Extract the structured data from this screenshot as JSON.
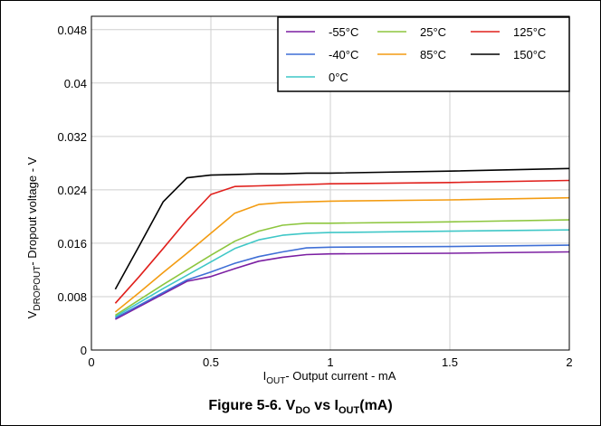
{
  "chart_data": {
    "type": "line",
    "caption": {
      "prefix": "Figure 5-6. V",
      "sub1": "DO",
      "mid": " vs I",
      "sub2": "OUT",
      "suffix": "(mA)"
    },
    "xlabel": {
      "main": "I",
      "sub": "OUT",
      "rest": "- Output current - mA"
    },
    "ylabel": {
      "main": "V",
      "sub": "DROPOUT",
      "rest": "- Dropout voltage - V"
    },
    "xlim": [
      0,
      2
    ],
    "ylim": [
      0,
      0.05
    ],
    "x_ticks": [
      0,
      0.5,
      1,
      1.5,
      2
    ],
    "x_tick_labels": [
      "0",
      "0.5",
      "1",
      "1.5",
      "2"
    ],
    "y_ticks": [
      0,
      0.008,
      0.016,
      0.024,
      0.032,
      0.04,
      0.048
    ],
    "y_tick_labels": [
      "0",
      "0.008",
      "0.016",
      "0.024",
      "0.032",
      "0.04",
      "0.048"
    ],
    "grid": true,
    "legend_position": "top-right",
    "x": [
      0.1,
      0.2,
      0.3,
      0.4,
      0.5,
      0.6,
      0.7,
      0.8,
      0.9,
      1.0,
      1.5,
      2.0
    ],
    "series": [
      {
        "name": "-55°C",
        "color": "#7b1fa2",
        "values": [
          0.0046,
          0.0065,
          0.0084,
          0.0103,
          0.011,
          0.0122,
          0.0133,
          0.0139,
          0.0143,
          0.0144,
          0.0145,
          0.0147
        ]
      },
      {
        "name": "-40°C",
        "color": "#3f6fd6",
        "values": [
          0.0048,
          0.0067,
          0.0086,
          0.0105,
          0.0117,
          0.013,
          0.014,
          0.0147,
          0.0153,
          0.0154,
          0.0155,
          0.0157
        ]
      },
      {
        "name": "0°C",
        "color": "#3fc7c7",
        "values": [
          0.005,
          0.0071,
          0.0092,
          0.0112,
          0.0132,
          0.0152,
          0.0165,
          0.0172,
          0.0175,
          0.0176,
          0.0178,
          0.018
        ]
      },
      {
        "name": "25°C",
        "color": "#8dc63f",
        "values": [
          0.0052,
          0.0075,
          0.0098,
          0.012,
          0.0142,
          0.0163,
          0.0178,
          0.0187,
          0.019,
          0.019,
          0.0192,
          0.0195
        ]
      },
      {
        "name": "85°C",
        "color": "#f39c12",
        "values": [
          0.0057,
          0.0086,
          0.0116,
          0.0145,
          0.0175,
          0.0205,
          0.0218,
          0.0221,
          0.0222,
          0.0223,
          0.0225,
          0.0228
        ]
      },
      {
        "name": "125°C",
        "color": "#e0201c",
        "values": [
          0.007,
          0.011,
          0.0152,
          0.0195,
          0.0233,
          0.0245,
          0.0246,
          0.0247,
          0.0248,
          0.0249,
          0.0251,
          0.0254
        ]
      },
      {
        "name": "150°C",
        "color": "#000000",
        "values": [
          0.0091,
          0.0156,
          0.0222,
          0.0258,
          0.0262,
          0.0263,
          0.0264,
          0.0264,
          0.0265,
          0.0265,
          0.0268,
          0.0272
        ]
      }
    ]
  }
}
